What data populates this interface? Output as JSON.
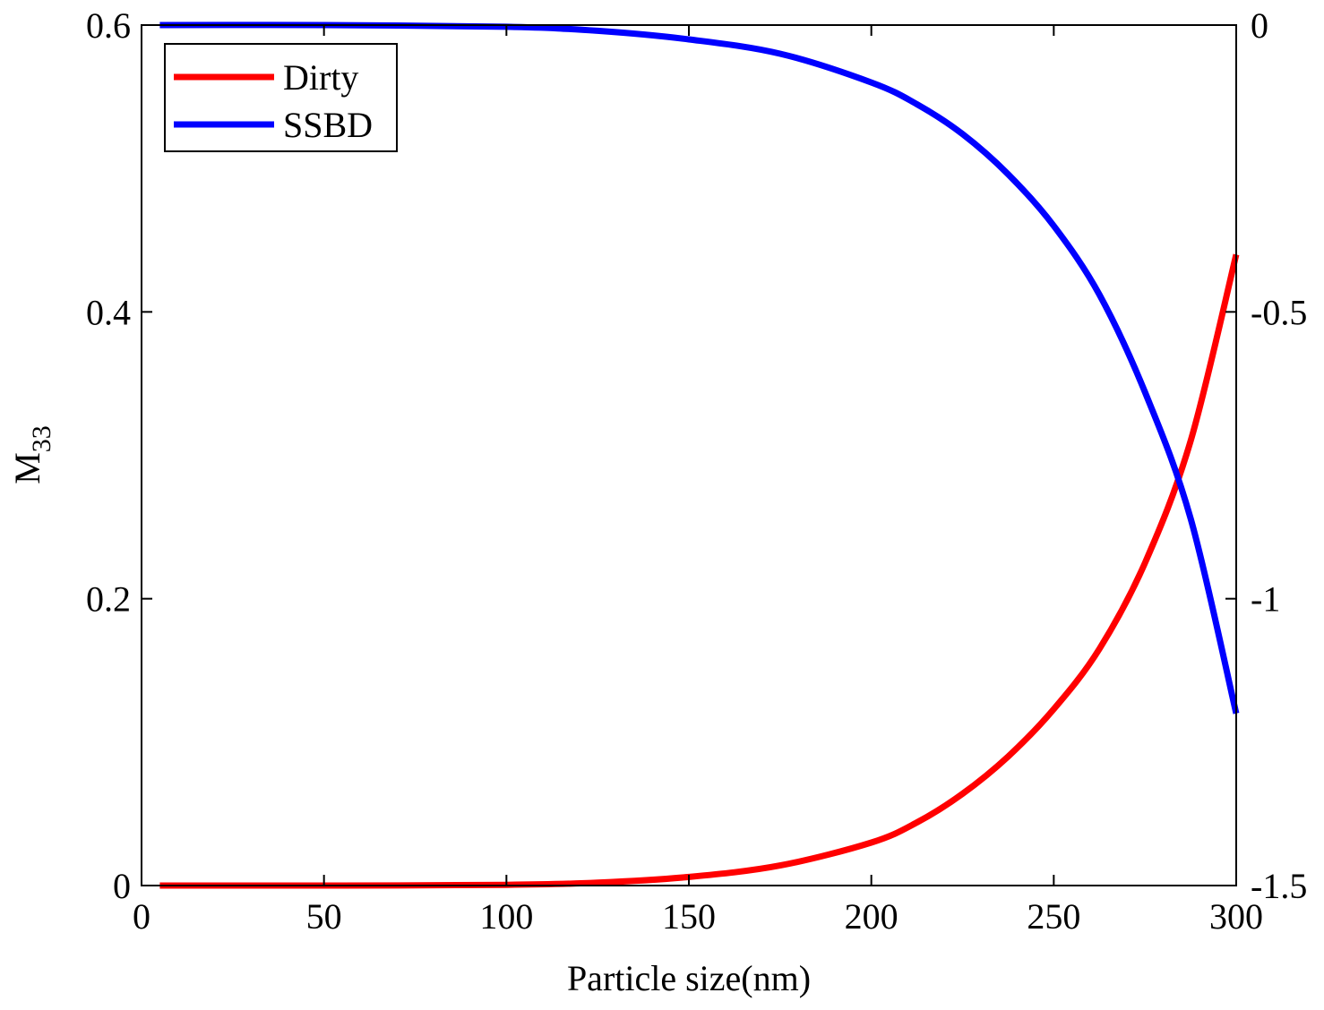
{
  "chart_data": {
    "type": "line",
    "title": "",
    "xlabel": "Particle size(nm)",
    "ylabel_main": "M",
    "ylabel_sub": "33",
    "xlim": [
      0,
      300
    ],
    "ylim_left": [
      0,
      0.6
    ],
    "ylim_right": [
      -1.5,
      0
    ],
    "xticks": [
      "0",
      "50",
      "100",
      "150",
      "200",
      "250",
      "300"
    ],
    "yticks_left": [
      "0",
      "0.2",
      "0.4",
      "0.6"
    ],
    "yticks_right": [
      "0",
      "-0.5",
      "-1",
      "-1.5"
    ],
    "grid": false,
    "legend_position": "top-left",
    "series": [
      {
        "name": "Dirty",
        "color": "#ff0000",
        "axis": "left",
        "x": [
          5,
          50,
          100,
          125,
          150,
          175,
          200,
          212.5,
          225,
          237.5,
          250,
          262.5,
          275,
          287.5,
          300
        ],
        "y": [
          0,
          0,
          0.0005,
          0.002,
          0.006,
          0.014,
          0.03,
          0.044,
          0.064,
          0.09,
          0.123,
          0.165,
          0.225,
          0.31,
          0.44
        ]
      },
      {
        "name": "SSBD",
        "color": "#0000ff",
        "axis": "right",
        "x": [
          5,
          50,
          100,
          125,
          150,
          175,
          200,
          212.5,
          225,
          237.5,
          250,
          262.5,
          275,
          287.5,
          300
        ],
        "y": [
          0,
          0,
          -0.003,
          -0.01,
          -0.025,
          -0.05,
          -0.1,
          -0.138,
          -0.19,
          -0.26,
          -0.35,
          -0.47,
          -0.64,
          -0.86,
          -1.2
        ]
      }
    ]
  }
}
